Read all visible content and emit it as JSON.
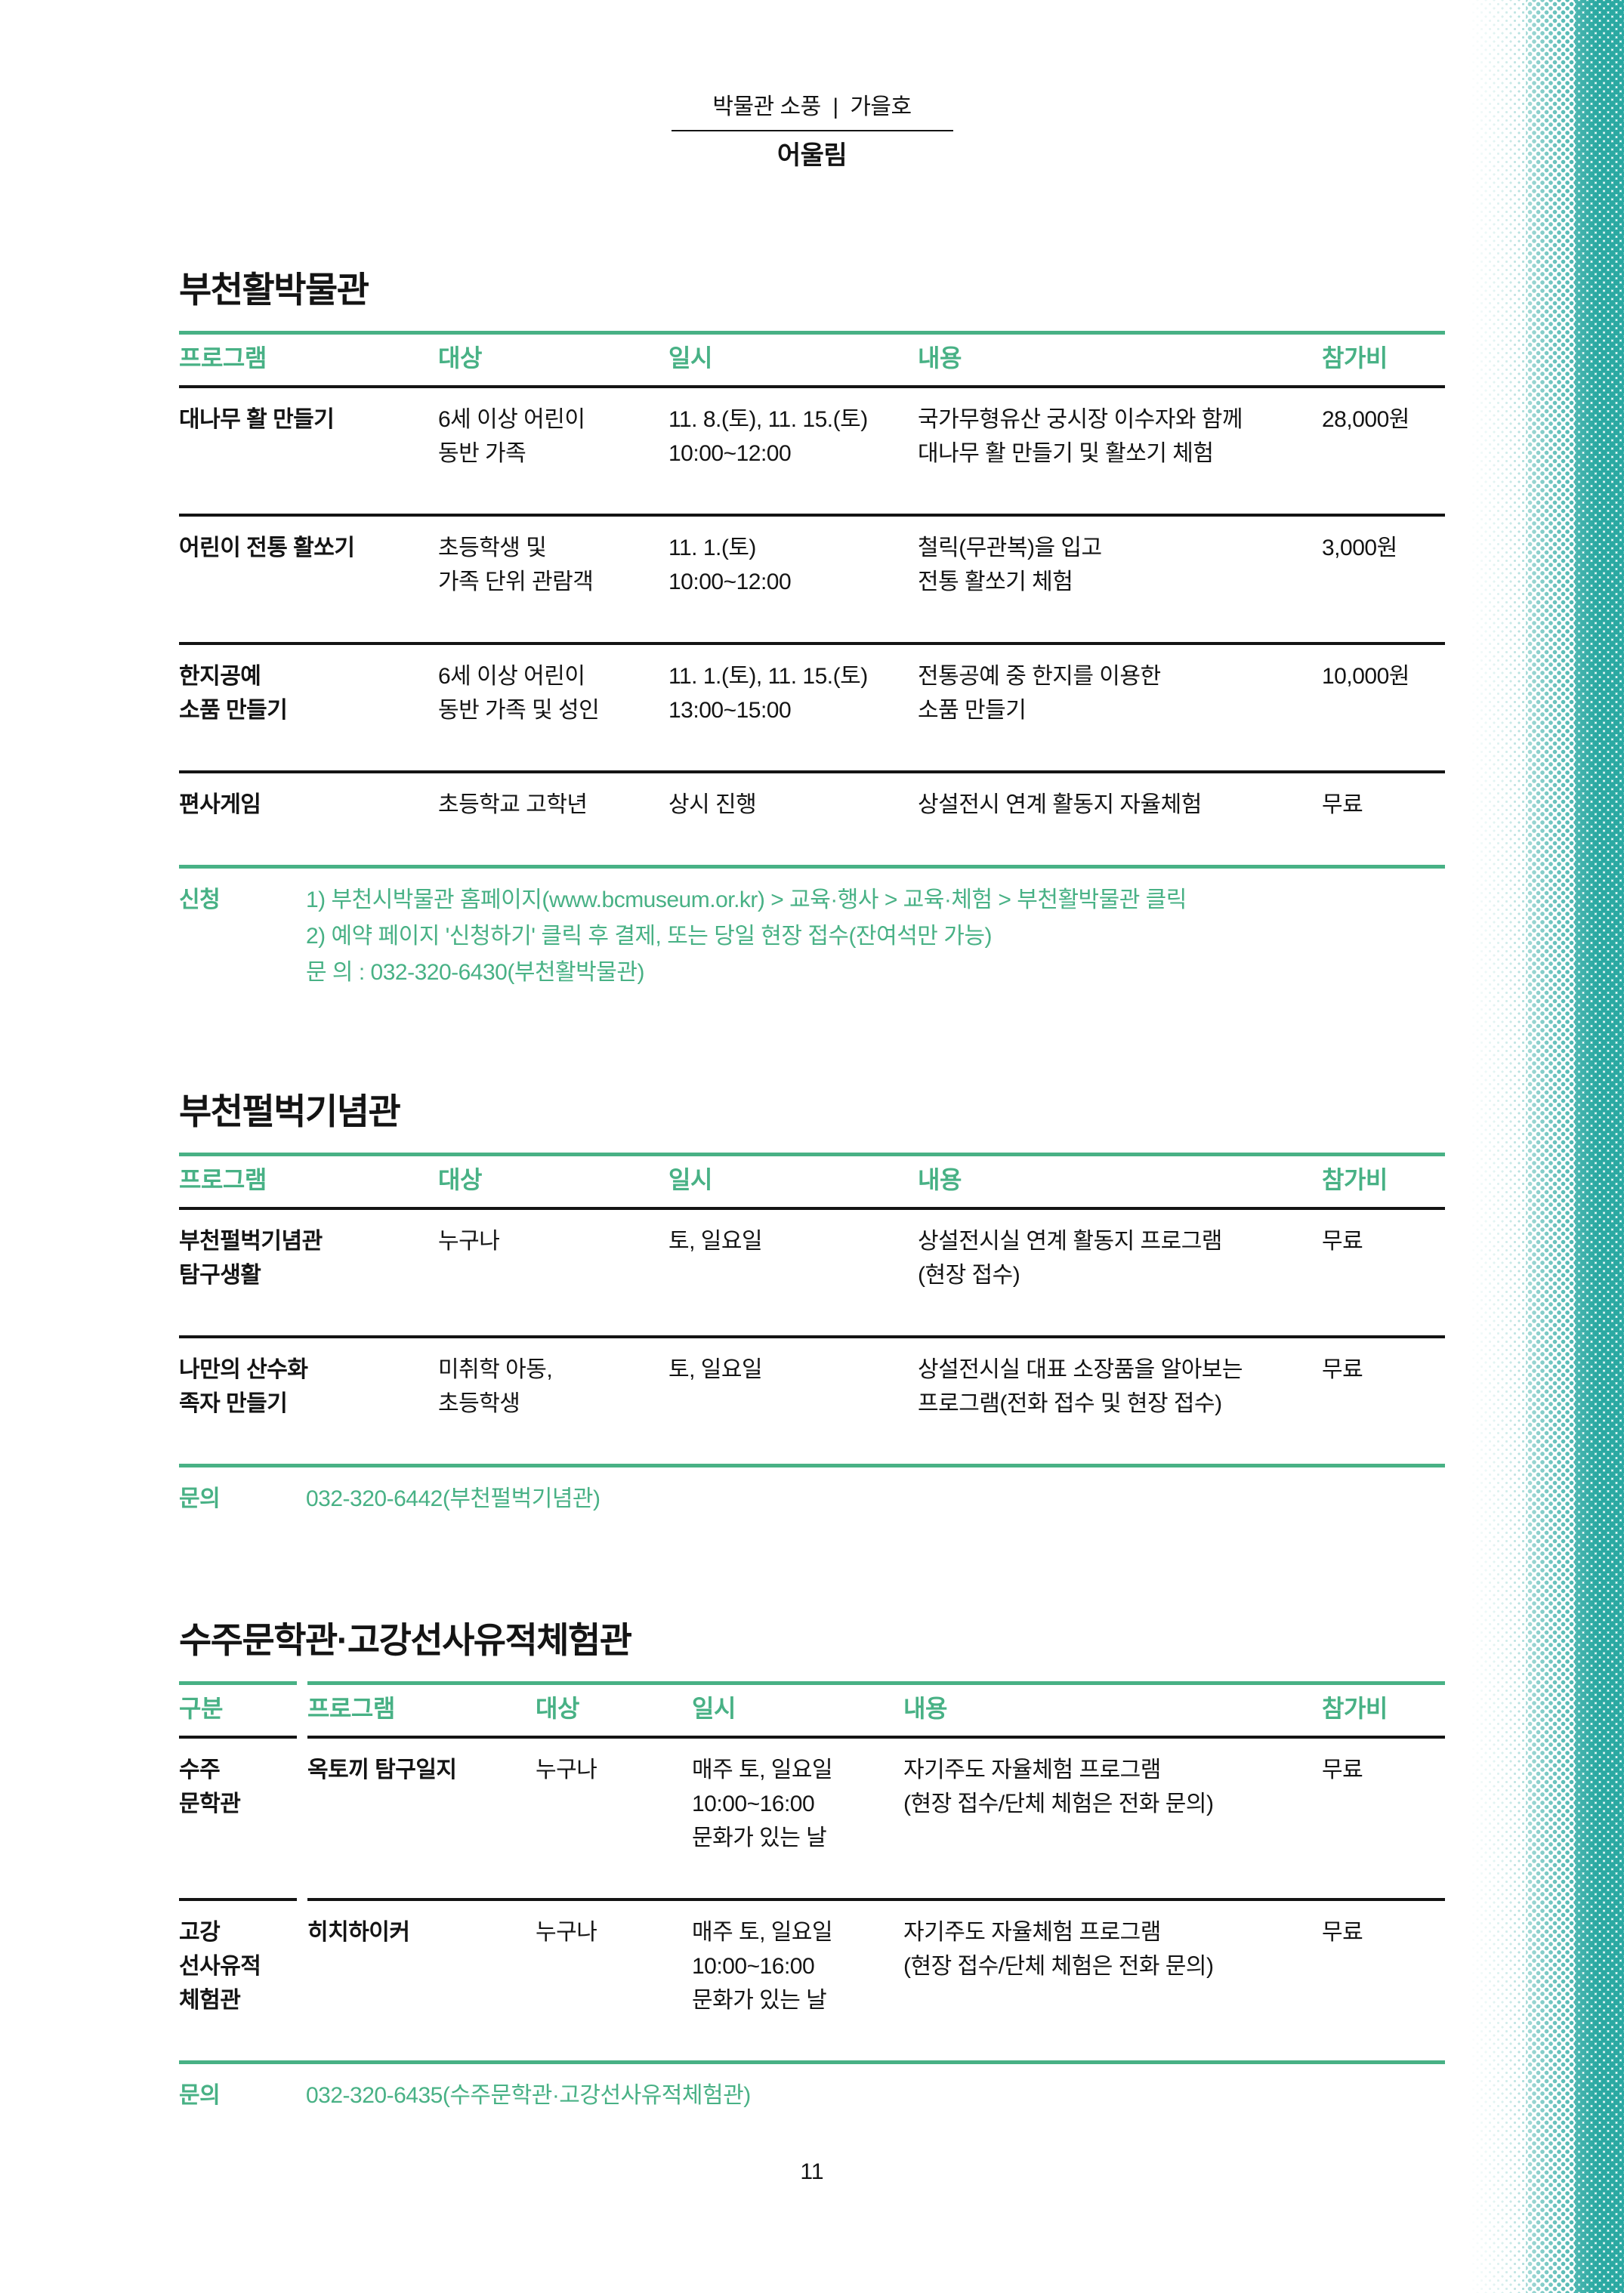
{
  "page": {
    "masthead": {
      "issue_label": "박물관 소풍  |  가을호",
      "brand": "어울림"
    },
    "page_number": "11",
    "accent_green": "#48b185",
    "halftone_teal": "#2ba9a2"
  },
  "sections": [
    {
      "title": "부천활박물관",
      "columns": [
        "프로그램",
        "대상",
        "일시",
        "내용",
        "참가비"
      ],
      "rows": [
        {
          "program": "대나무 활 만들기",
          "target": "6세 이상 어린이\n동반 가족",
          "schedule": "11. 8.(토), 11. 15.(토)\n10:00~12:00",
          "description": "국가무형유산 궁시장 이수자와 함께\n대나무 활 만들기 및 활쏘기 체험",
          "fee": "28,000원"
        },
        {
          "program": "어린이 전통 활쏘기",
          "target": "초등학생 및\n가족 단위 관람객",
          "schedule": "11. 1.(토)\n10:00~12:00",
          "description": "철릭(무관복)을 입고\n전통 활쏘기 체험",
          "fee": "3,000원"
        },
        {
          "program": "한지공예\n소품 만들기",
          "target": "6세 이상 어린이\n동반 가족 및 성인",
          "schedule": "11. 1.(토), 11. 15.(토)\n13:00~15:00",
          "description": "전통공예 중 한지를 이용한\n소품 만들기",
          "fee": "10,000원"
        },
        {
          "program": "편사게임",
          "target": "초등학교 고학년",
          "schedule": "상시 진행",
          "description": "상설전시 연계 활동지 자율체험",
          "fee": "무료"
        }
      ],
      "notes": {
        "label": "신청",
        "lines": [
          "1) 부천시박물관 홈페이지(www.bcmuseum.or.kr) > 교육·행사 > 교육·체험 > 부천활박물관 클릭",
          "2) 예약 페이지 '신청하기' 클릭 후 결제, 또는 당일 현장 접수(잔여석만 가능)",
          "문 의 : 032-320-6430(부천활박물관)"
        ]
      }
    },
    {
      "title": "부천펄벅기념관",
      "columns": [
        "프로그램",
        "대상",
        "일시",
        "내용",
        "참가비"
      ],
      "rows": [
        {
          "program": "부천펄벅기념관\n탐구생활",
          "target": "누구나",
          "schedule": "토, 일요일",
          "description": "상설전시실 연계 활동지 프로그램\n(현장 접수)",
          "fee": "무료"
        },
        {
          "program": "나만의 산수화\n족자 만들기",
          "target": "미취학 아동,\n초등학생",
          "schedule": "토, 일요일",
          "description": "상설전시실 대표 소장품을 알아보는\n프로그램(전화 접수 및 현장 접수)",
          "fee": "무료"
        }
      ],
      "notes": {
        "label": "문의",
        "lines": [
          "032-320-6442(부천펄벅기념관)"
        ]
      }
    },
    {
      "title": "수주문학관·고강선사유적체험관",
      "columns": [
        "구분",
        "프로그램",
        "대상",
        "일시",
        "내용",
        "참가비"
      ],
      "rows": [
        {
          "group": "수주\n문학관",
          "program": "옥토끼 탐구일지",
          "target": "누구나",
          "schedule": "매주 토, 일요일\n10:00~16:00\n문화가 있는 날",
          "description": "자기주도 자율체험 프로그램\n(현장 접수/단체 체험은 전화 문의)",
          "fee": "무료"
        },
        {
          "group": "고강\n선사유적\n체험관",
          "program": "히치하이커",
          "target": "누구나",
          "schedule": "매주 토, 일요일\n10:00~16:00\n문화가 있는 날",
          "description": "자기주도 자율체험 프로그램\n(현장 접수/단체 체험은 전화 문의)",
          "fee": "무료"
        }
      ],
      "notes": {
        "label": "문의",
        "lines": [
          "032-320-6435(수주문학관·고강선사유적체험관)"
        ]
      }
    }
  ]
}
